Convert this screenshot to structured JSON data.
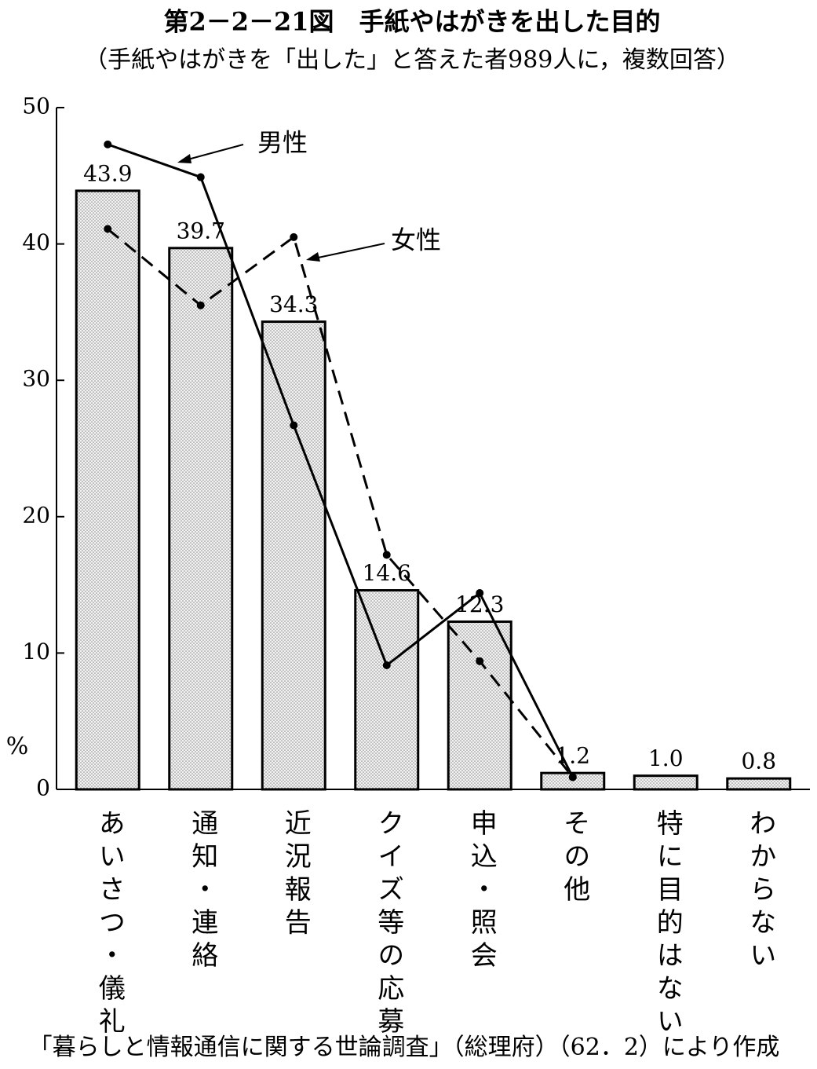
{
  "chart_data": {
    "type": "bar",
    "title": "第2－2－21図　手紙やはがきを出した目的",
    "subtitle": "（手紙やはがきを「出した」と答えた者989人に，複数回答）",
    "y_label": "%",
    "source": "「暮らしと情報通信に関する世論調査」（総理府）（62．2）により作成",
    "categories": [
      "あいさつ・儀礼",
      "通知・連絡",
      "近況報告",
      "クイズ等の応募",
      "申込・照会",
      "その他",
      "特に目的はない",
      "わからない"
    ],
    "values": [
      43.9,
      39.7,
      34.3,
      14.6,
      12.3,
      1.2,
      1.0,
      0.8
    ],
    "value_labels": [
      "43.9",
      "39.7",
      "34.3",
      "14.6",
      "12.3",
      "1.2",
      "1.0",
      "0.8"
    ],
    "color": "#e6e6e6",
    "series": [
      {
        "name": "男性",
        "color": "#000000",
        "values": [
          47.3,
          44.9,
          26.7,
          9.1,
          14.4,
          0.9,
          null,
          null
        ]
      },
      {
        "name": "女性",
        "color": "#000000",
        "values": [
          41.1,
          35.5,
          40.5,
          17.2,
          9.4,
          0.9,
          null,
          null
        ]
      }
    ],
    "ylim": [
      0,
      50
    ],
    "yticks": [
      0,
      10,
      20,
      30,
      40,
      50
    ]
  }
}
